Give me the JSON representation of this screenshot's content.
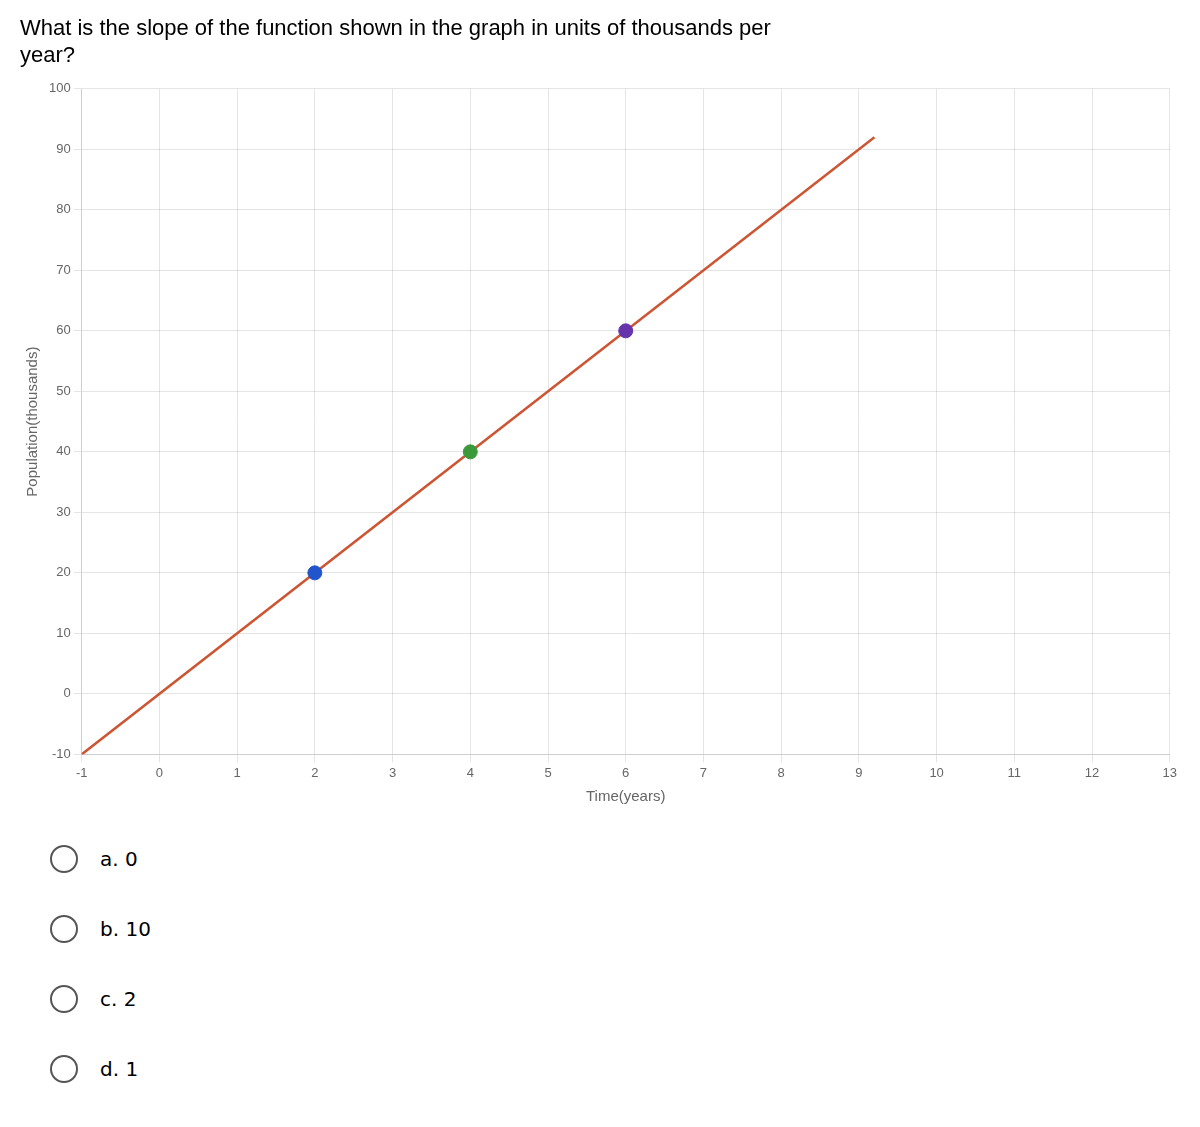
{
  "chart_data": {
    "type": "line",
    "title": [
      "What is the slope of the function shown in the graph in units of thousands per",
      "year?"
    ],
    "x_label": "Time(years)",
    "y_label": "Population(thousands)",
    "xlim": [
      -1,
      13
    ],
    "ylim": [
      -10,
      100
    ],
    "xticks": [
      -1,
      0,
      1,
      2,
      3,
      4,
      5,
      6,
      7,
      8,
      9,
      10,
      11,
      12,
      13
    ],
    "yticks": [
      -10,
      0,
      10,
      20,
      30,
      40,
      50,
      60,
      70,
      80,
      90,
      100
    ],
    "grid": true,
    "series": [
      {
        "type": "line",
        "color": "#cc5533",
        "x": [
          -1,
          9.2
        ],
        "values": [
          -10,
          92
        ]
      },
      {
        "type": "scatter",
        "colors": [
          "#2255cc",
          "#3a9a3a",
          "#6633aa"
        ],
        "x": [
          2,
          4,
          6
        ],
        "values": [
          20,
          40,
          60
        ]
      }
    ],
    "annotations": [
      "a. 0",
      "b. 10",
      "c. 2",
      "d. 1"
    ]
  }
}
